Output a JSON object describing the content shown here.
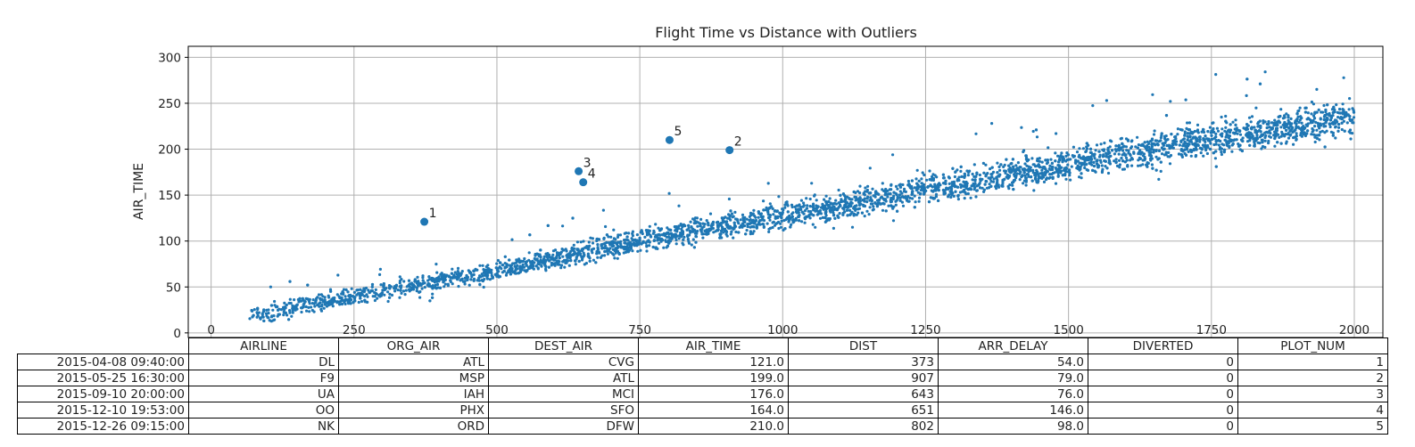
{
  "chart_data": {
    "type": "scatter",
    "title": "Flight Time vs Distance with Outliers",
    "xlabel": "",
    "ylabel": "AIR_TIME",
    "xlim": [
      -40,
      2050
    ],
    "ylim": [
      -5,
      312
    ],
    "x_ticks": [
      0,
      250,
      500,
      750,
      1000,
      1250,
      1500,
      1750,
      2000
    ],
    "y_ticks": [
      0,
      50,
      100,
      150,
      200,
      250,
      300
    ],
    "grid": true,
    "point_color": "#1f77b4",
    "trend": {
      "description_points": [
        [
          67,
          18
        ],
        [
          250,
          40
        ],
        [
          500,
          68
        ],
        [
          750,
          100
        ],
        [
          1000,
          128
        ],
        [
          1250,
          155
        ],
        [
          1500,
          183
        ],
        [
          1750,
          212
        ],
        [
          2000,
          235
        ]
      ],
      "spread_below": 9,
      "spread_above": 12
    },
    "outliers": [
      {
        "label": "1",
        "x": 373,
        "y": 121.0
      },
      {
        "label": "2",
        "x": 907,
        "y": 199.0
      },
      {
        "label": "3",
        "x": 643,
        "y": 176.0
      },
      {
        "label": "4",
        "x": 651,
        "y": 164.0
      },
      {
        "label": "5",
        "x": 802,
        "y": 210.0
      }
    ]
  },
  "table": {
    "columns": [
      "AIRLINE",
      "ORG_AIR",
      "DEST_AIR",
      "AIR_TIME",
      "DIST",
      "ARR_DELAY",
      "DIVERTED",
      "PLOT_NUM"
    ],
    "rows": [
      {
        "index": "2015-04-08 09:40:00",
        "cells": [
          "DL",
          "ATL",
          "CVG",
          "121.0",
          "373",
          "54.0",
          "0",
          "1"
        ]
      },
      {
        "index": "2015-05-25 16:30:00",
        "cells": [
          "F9",
          "MSP",
          "ATL",
          "199.0",
          "907",
          "79.0",
          "0",
          "2"
        ]
      },
      {
        "index": "2015-09-10 20:00:00",
        "cells": [
          "UA",
          "IAH",
          "MCI",
          "176.0",
          "643",
          "76.0",
          "0",
          "3"
        ]
      },
      {
        "index": "2015-12-10 19:53:00",
        "cells": [
          "OO",
          "PHX",
          "SFO",
          "164.0",
          "651",
          "146.0",
          "0",
          "4"
        ]
      },
      {
        "index": "2015-12-26 09:15:00",
        "cells": [
          "NK",
          "ORD",
          "DFW",
          "210.0",
          "802",
          "98.0",
          "0",
          "5"
        ]
      }
    ]
  }
}
